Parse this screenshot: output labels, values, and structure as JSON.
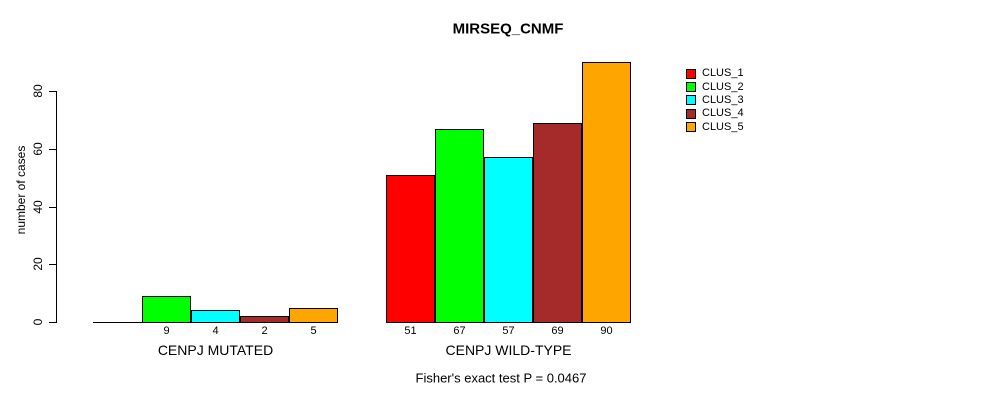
{
  "title": "MIRSEQ_CNMF",
  "chart_data": {
    "type": "bar",
    "title": "MIRSEQ_CNMF",
    "ylabel": "number of cases",
    "xlabel": "",
    "yticks": [
      0,
      20,
      40,
      60,
      80
    ],
    "ylim": [
      0,
      91
    ],
    "grid": false,
    "legend_position": "right-outside",
    "categories": [
      "CENPJ MUTATED",
      "CENPJ WILD-TYPE"
    ],
    "series": [
      {
        "name": "CLUS_1",
        "color": "#FF0000",
        "values": [
          0,
          51
        ]
      },
      {
        "name": "CLUS_2",
        "color": "#00FF00",
        "values": [
          9,
          67
        ]
      },
      {
        "name": "CLUS_3",
        "color": "#00FFFF",
        "values": [
          4,
          57
        ]
      },
      {
        "name": "CLUS_4",
        "color": "#A52A2A",
        "values": [
          2,
          69
        ]
      },
      {
        "name": "CLUS_5",
        "color": "#FFA500",
        "values": [
          5,
          90
        ]
      }
    ],
    "bar_value_labels_shown": true,
    "zero_bars_unlabeled": true,
    "annotation": "Fisher's exact test P = 0.0467"
  },
  "colors": {
    "axis": "#000000",
    "background": "#FFFFFF",
    "text": "#000000"
  }
}
